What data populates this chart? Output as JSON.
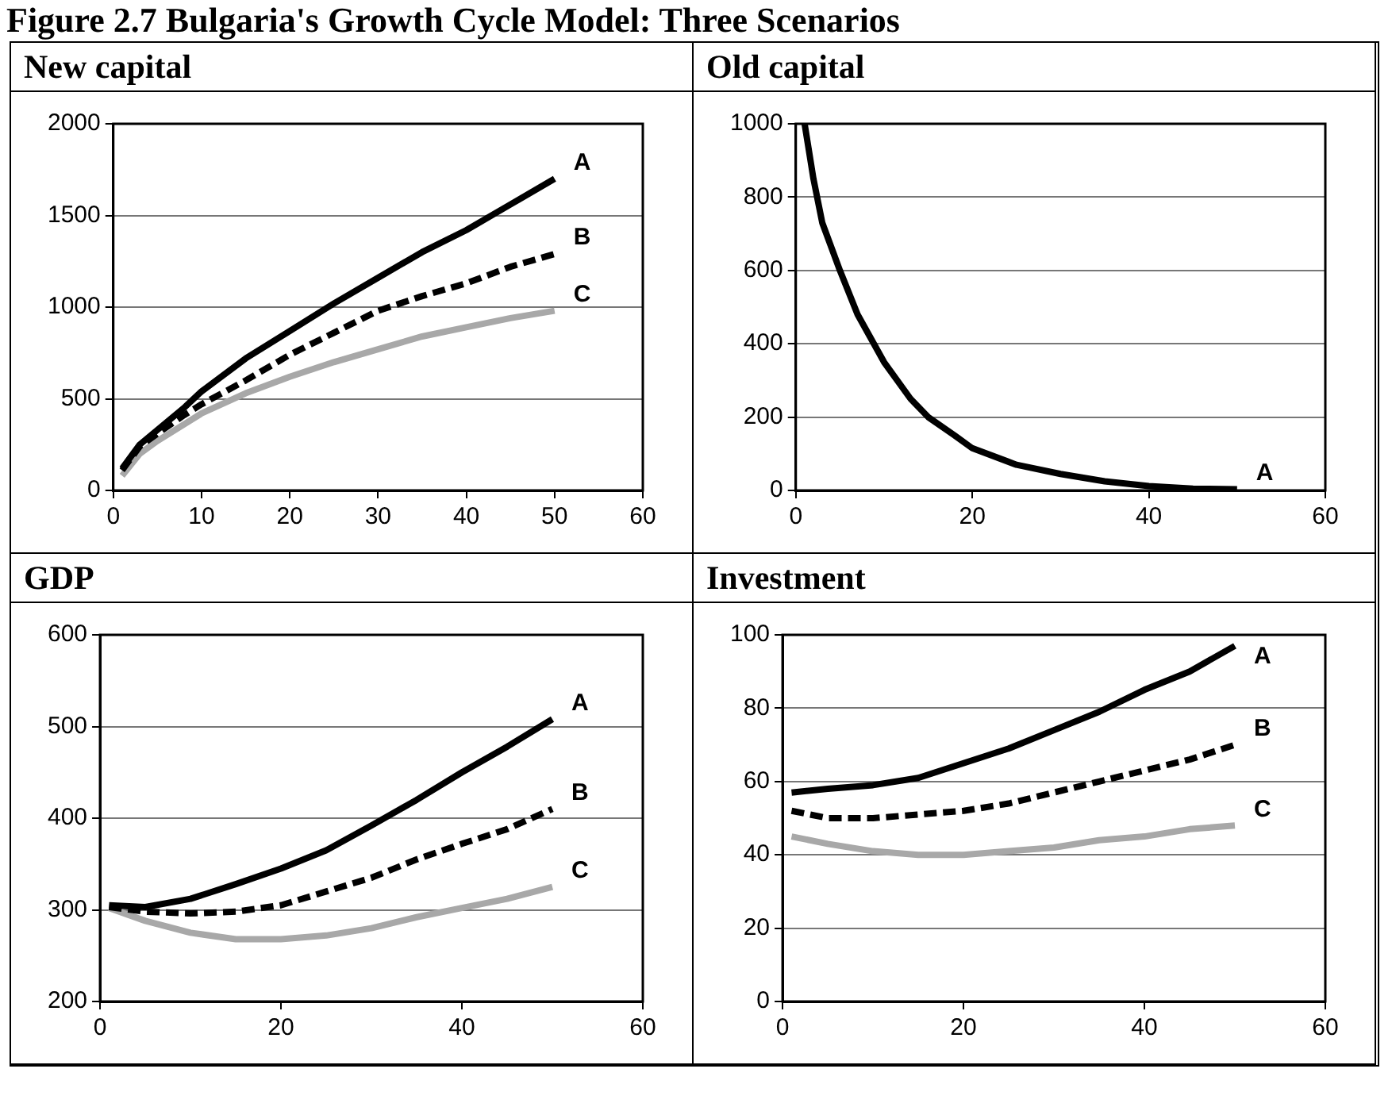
{
  "chart_data": [
    {
      "type": "line",
      "title": "New capital",
      "annotations": [
        "Figure 2.7 Bulgaria's Growth Cycle Model: Three Scenarios"
      ],
      "grid": "y",
      "legend": false,
      "marker": "none",
      "xlim": [
        0,
        60
      ],
      "xticks": [
        0,
        10,
        20,
        30,
        40,
        50,
        60
      ],
      "ylim": [
        0,
        2000
      ],
      "yticks": [
        0,
        500,
        1000,
        1500,
        2000
      ],
      "x": [
        1,
        3,
        5,
        8,
        10,
        15,
        20,
        25,
        30,
        35,
        40,
        45,
        50
      ],
      "series": [
        {
          "name": "A",
          "color": "#000000",
          "line_style": "solid",
          "values": [
            120,
            250,
            330,
            450,
            540,
            720,
            870,
            1020,
            1160,
            1300,
            1420,
            1560,
            1700
          ]
        },
        {
          "name": "B",
          "color": "#000000",
          "line_style": "dashed",
          "values": [
            110,
            240,
            310,
            410,
            470,
            600,
            740,
            860,
            980,
            1060,
            1130,
            1220,
            1290
          ]
        },
        {
          "name": "C",
          "color": "#a8a8a8",
          "line_style": "solid",
          "values": [
            80,
            200,
            270,
            360,
            420,
            530,
            620,
            700,
            770,
            840,
            890,
            940,
            980
          ]
        }
      ]
    },
    {
      "type": "line",
      "title": "Old capital",
      "grid": "y",
      "legend": false,
      "marker": "none",
      "xlim": [
        0,
        60
      ],
      "xticks": [
        0,
        20,
        40,
        60
      ],
      "ylim": [
        0,
        1000
      ],
      "yticks": [
        0,
        200,
        400,
        600,
        800,
        1000
      ],
      "x": [
        1,
        2,
        3,
        5,
        7,
        10,
        13,
        15,
        18,
        20,
        25,
        30,
        35,
        40,
        45,
        50
      ],
      "series": [
        {
          "name": "A",
          "color": "#000000",
          "line_style": "solid",
          "values": [
            1000,
            850,
            730,
            600,
            480,
            350,
            250,
            200,
            150,
            115,
            70,
            45,
            25,
            12,
            5,
            3
          ]
        }
      ]
    },
    {
      "type": "line",
      "title": "GDP",
      "grid": "y",
      "legend": false,
      "marker": "none",
      "xlim": [
        0,
        60
      ],
      "xticks": [
        0,
        20,
        40,
        60
      ],
      "ylim": [
        200,
        600
      ],
      "yticks": [
        200,
        300,
        400,
        500,
        600
      ],
      "x": [
        1,
        5,
        10,
        15,
        20,
        25,
        30,
        35,
        40,
        45,
        50
      ],
      "series": [
        {
          "name": "A",
          "color": "#000000",
          "line_style": "solid",
          "values": [
            305,
            303,
            312,
            328,
            345,
            365,
            392,
            420,
            450,
            478,
            508
          ]
        },
        {
          "name": "B",
          "color": "#000000",
          "line_style": "dashed",
          "values": [
            303,
            298,
            296,
            298,
            305,
            320,
            335,
            355,
            372,
            388,
            410
          ]
        },
        {
          "name": "C",
          "color": "#a8a8a8",
          "line_style": "solid",
          "values": [
            302,
            288,
            275,
            268,
            268,
            272,
            280,
            292,
            302,
            312,
            325
          ]
        }
      ]
    },
    {
      "type": "line",
      "title": "Investment",
      "grid": "y",
      "legend": false,
      "marker": "none",
      "xlim": [
        0,
        60
      ],
      "xticks": [
        0,
        20,
        40,
        60
      ],
      "ylim": [
        0,
        100
      ],
      "yticks": [
        0,
        20,
        40,
        60,
        80,
        100
      ],
      "x": [
        1,
        5,
        10,
        15,
        20,
        25,
        30,
        35,
        40,
        45,
        50
      ],
      "series": [
        {
          "name": "A",
          "color": "#000000",
          "line_style": "solid",
          "values": [
            57,
            58,
            59,
            61,
            65,
            69,
            74,
            79,
            85,
            90,
            97
          ]
        },
        {
          "name": "B",
          "color": "#000000",
          "line_style": "dashed",
          "values": [
            52,
            50,
            50,
            51,
            52,
            54,
            57,
            60,
            63,
            66,
            70
          ]
        },
        {
          "name": "C",
          "color": "#a8a8a8",
          "line_style": "solid",
          "values": [
            45,
            43,
            41,
            40,
            40,
            41,
            42,
            44,
            45,
            47,
            48
          ]
        }
      ]
    }
  ]
}
